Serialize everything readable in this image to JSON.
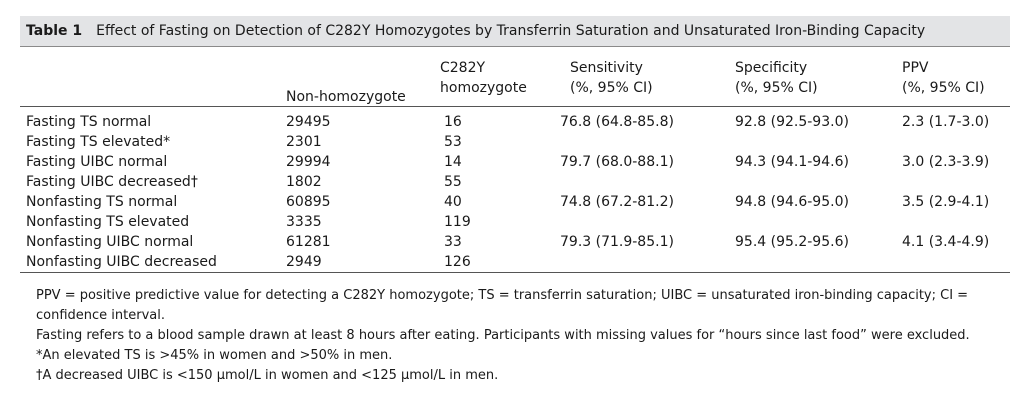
{
  "table": {
    "number": "Table 1",
    "title": "Effect of Fasting on Detection of C282Y Homozygotes by Transferrin Saturation and Unsaturated Iron-Binding Capacity",
    "headers": {
      "non_homozygote": [
        "Non-homozygote"
      ],
      "c282y": [
        "C282Y",
        "homozygote"
      ],
      "sensitivity": [
        "Sensitivity",
        "(%, 95% CI)"
      ],
      "specificity": [
        "Specificity",
        "(%, 95% CI)"
      ],
      "ppv": [
        "PPV",
        "(%, 95% CI)"
      ]
    },
    "rows": [
      {
        "label": "Fasting TS normal",
        "non_homozygote": "29495",
        "c282y": "16",
        "sensitivity": "76.8 (64.8-85.8)",
        "specificity": "92.8 (92.5-93.0)",
        "ppv": "2.3 (1.7-3.0)"
      },
      {
        "label": "Fasting TS elevated*",
        "non_homozygote": "2301",
        "c282y": "53",
        "sensitivity": "",
        "specificity": "",
        "ppv": ""
      },
      {
        "label": "Fasting UIBC normal",
        "non_homozygote": "29994",
        "c282y": "14",
        "sensitivity": "79.7 (68.0-88.1)",
        "specificity": "94.3 (94.1-94.6)",
        "ppv": "3.0 (2.3-3.9)"
      },
      {
        "label": "Fasting UIBC decreased†",
        "non_homozygote": "1802",
        "c282y": "55",
        "sensitivity": "",
        "specificity": "",
        "ppv": ""
      },
      {
        "label": "Nonfasting TS normal",
        "non_homozygote": "60895",
        "c282y": "40",
        "sensitivity": "74.8 (67.2-81.2)",
        "specificity": "94.8 (94.6-95.0)",
        "ppv": "3.5 (2.9-4.1)"
      },
      {
        "label": "Nonfasting TS elevated",
        "non_homozygote": "3335",
        "c282y": "119",
        "sensitivity": "",
        "specificity": "",
        "ppv": ""
      },
      {
        "label": "Nonfasting UIBC normal",
        "non_homozygote": "61281",
        "c282y": "33",
        "sensitivity": "79.3 (71.9-85.1)",
        "specificity": "95.4 (95.2-95.6)",
        "ppv": "4.1 (3.4-4.9)"
      },
      {
        "label": "Nonfasting UIBC decreased",
        "non_homozygote": "2949",
        "c282y": "126",
        "sensitivity": "",
        "specificity": "",
        "ppv": ""
      }
    ]
  },
  "notes": [
    "PPV = positive predictive value for detecting a C282Y homozygote; TS = transferrin saturation; UIBC = unsaturated iron-binding capacity; CI = confidence interval.",
    "Fasting refers to a blood sample drawn at least 8 hours after eating. Participants with missing values for “hours since last food” were excluded.",
    "*An elevated TS is >45% in women and >50% in men.",
    "†A decreased UIBC is <150 μmol/L in women and <125 μmol/L in men."
  ],
  "colors": {
    "title_bg": "#e3e4e6",
    "rule": "#555555",
    "text": "#1a1a1a"
  }
}
